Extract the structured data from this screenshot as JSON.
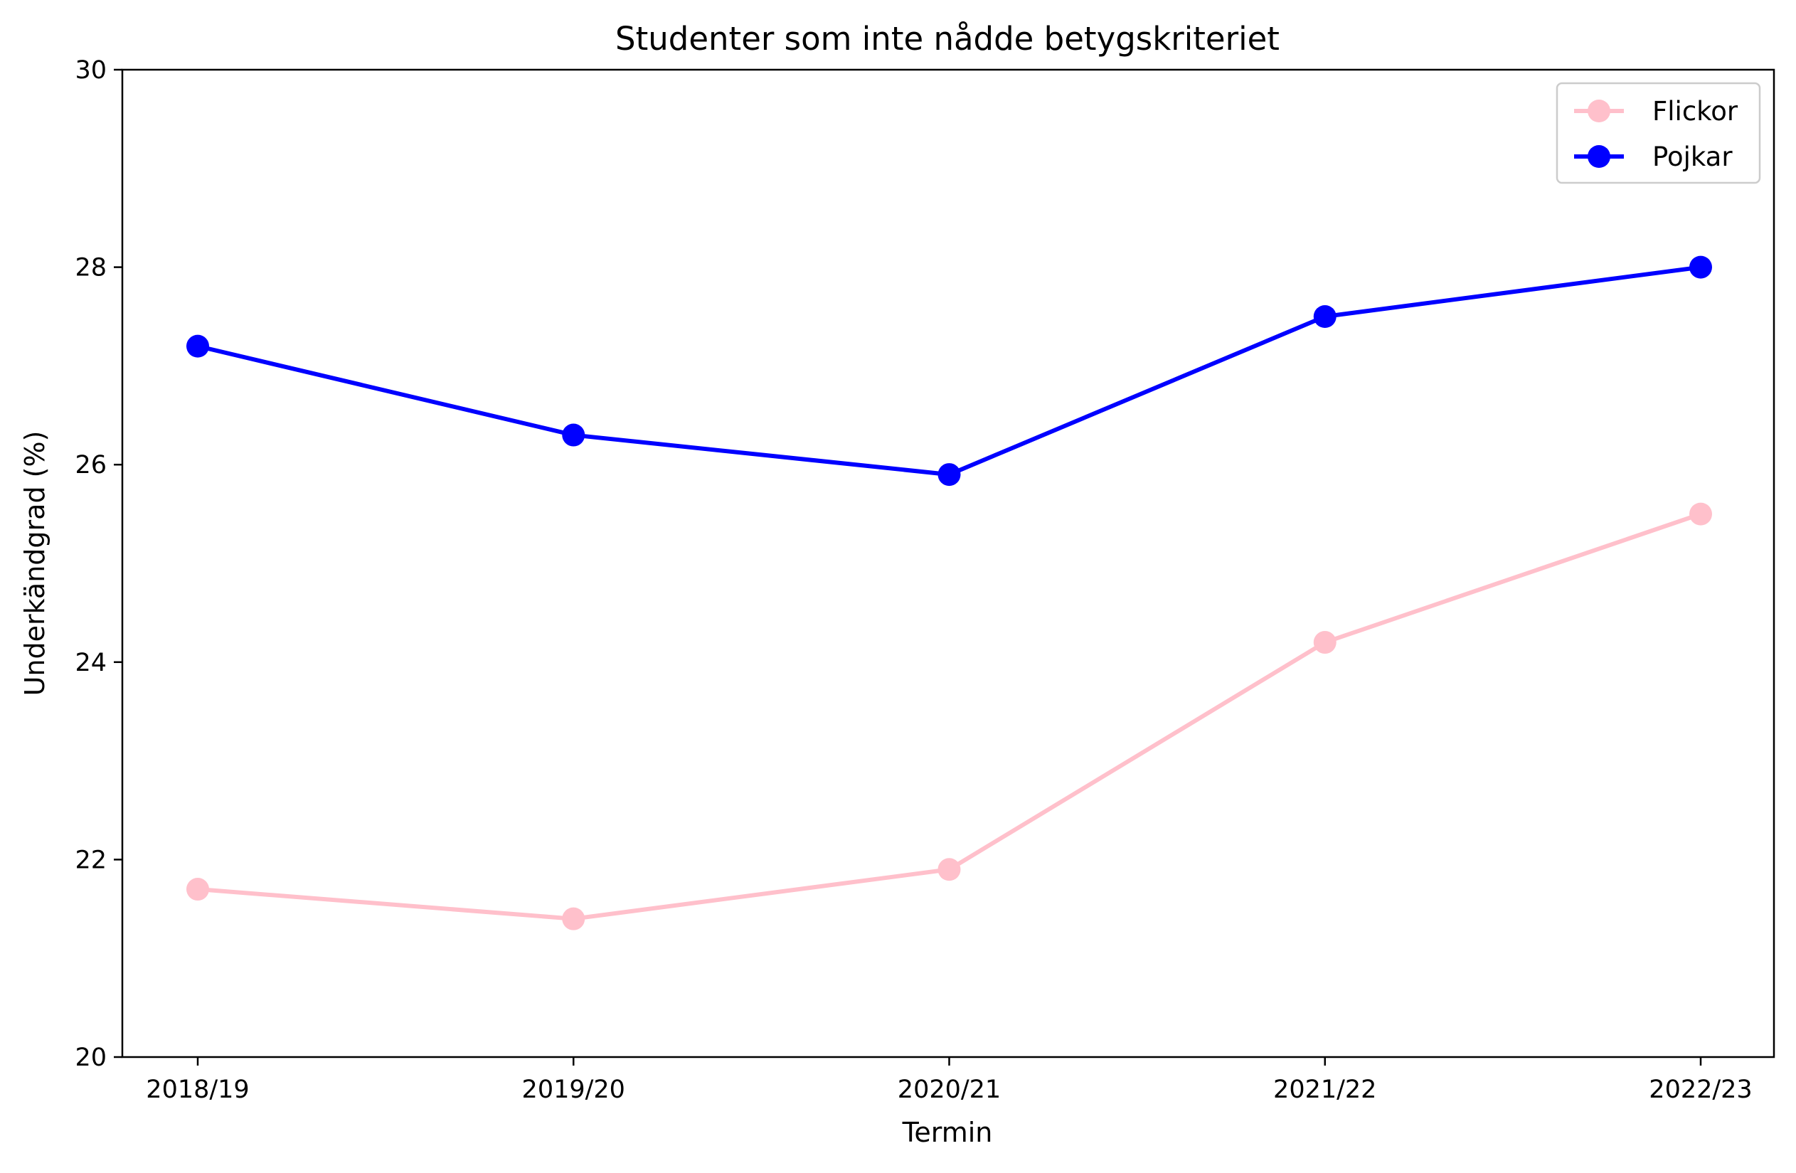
{
  "chart_data": {
    "type": "line",
    "title": "Studenter som inte nådde betygskriteriet",
    "xlabel": "Termin",
    "ylabel": "Underkändgrad (%)",
    "categories": [
      "2018/19",
      "2019/20",
      "2020/21",
      "2021/22",
      "2022/23"
    ],
    "ylim": [
      20,
      30
    ],
    "yticks": [
      20,
      22,
      24,
      26,
      28,
      30
    ],
    "grid": false,
    "legend_position": "top-right",
    "series": [
      {
        "name": "Flickor",
        "color": "#ffc0cb",
        "marker": "circle",
        "values": [
          21.7,
          21.4,
          21.9,
          24.2,
          25.5
        ]
      },
      {
        "name": "Pojkar",
        "color": "#0000ff",
        "marker": "circle",
        "values": [
          27.2,
          26.3,
          25.9,
          27.5,
          28.0
        ]
      }
    ]
  }
}
